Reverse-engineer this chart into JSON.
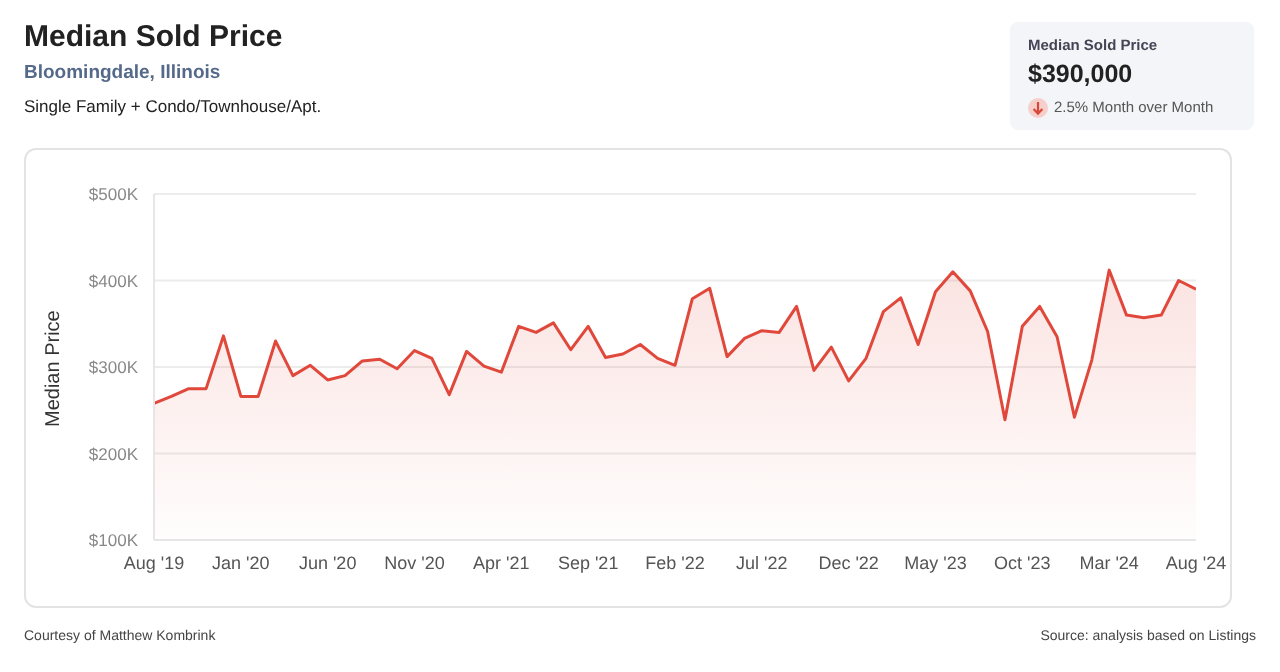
{
  "chart_data": {
    "type": "area",
    "title": "Median Sold Price",
    "subtitle": "Bloomingdale, Illinois",
    "ylabel": "Median Price",
    "annotations": [
      "Single Family + Condo/Townhouse/Apt.",
      "Median Sold Price",
      "$390,000",
      "2.5% Month over Month",
      "Courtesy of Matthew Kombrink",
      "Source: analysis based on Listings"
    ],
    "categories": [
      "Aug '19",
      null,
      null,
      null,
      null,
      "Jan '20",
      null,
      null,
      null,
      null,
      "Jun '20",
      null,
      null,
      null,
      null,
      "Nov '20",
      null,
      null,
      null,
      null,
      "Apr '21",
      null,
      null,
      null,
      null,
      "Sep '21",
      null,
      null,
      null,
      null,
      "Feb '22",
      null,
      null,
      null,
      null,
      "Jul '22",
      null,
      null,
      null,
      null,
      "Dec '22",
      null,
      null,
      null,
      null,
      "May '23",
      null,
      null,
      null,
      null,
      "Oct '23",
      null,
      null,
      null,
      null,
      "Mar '24",
      null,
      null,
      null,
      null,
      "Aug '24"
    ],
    "series": [
      {
        "color": "#e0483b",
        "values": [
          258000,
          266000,
          275000,
          275000,
          336000,
          266000,
          266000,
          330000,
          290000,
          302000,
          285000,
          290000,
          307000,
          309000,
          298000,
          319000,
          310000,
          268000,
          318000,
          301000,
          294000,
          347000,
          340000,
          351000,
          320000,
          347000,
          311000,
          315000,
          326000,
          310000,
          302000,
          379000,
          391000,
          312000,
          333000,
          342000,
          340000,
          370000,
          296000,
          323000,
          284000,
          310000,
          364000,
          380000,
          326000,
          387000,
          410000,
          388000,
          341000,
          239000,
          347000,
          370000,
          335000,
          242000,
          308000,
          412000,
          360000,
          357000,
          360000,
          400000,
          390000
        ]
      }
    ],
    "ylim": [
      100000,
      500000
    ],
    "yticks": [
      {
        "value": 100000,
        "label": "$100K"
      },
      {
        "value": 200000,
        "label": "$200K"
      },
      {
        "value": 300000,
        "label": "$300K"
      },
      {
        "value": 400000,
        "label": "$400K"
      },
      {
        "value": 500000,
        "label": "$500K"
      }
    ],
    "grid": "y"
  }
}
